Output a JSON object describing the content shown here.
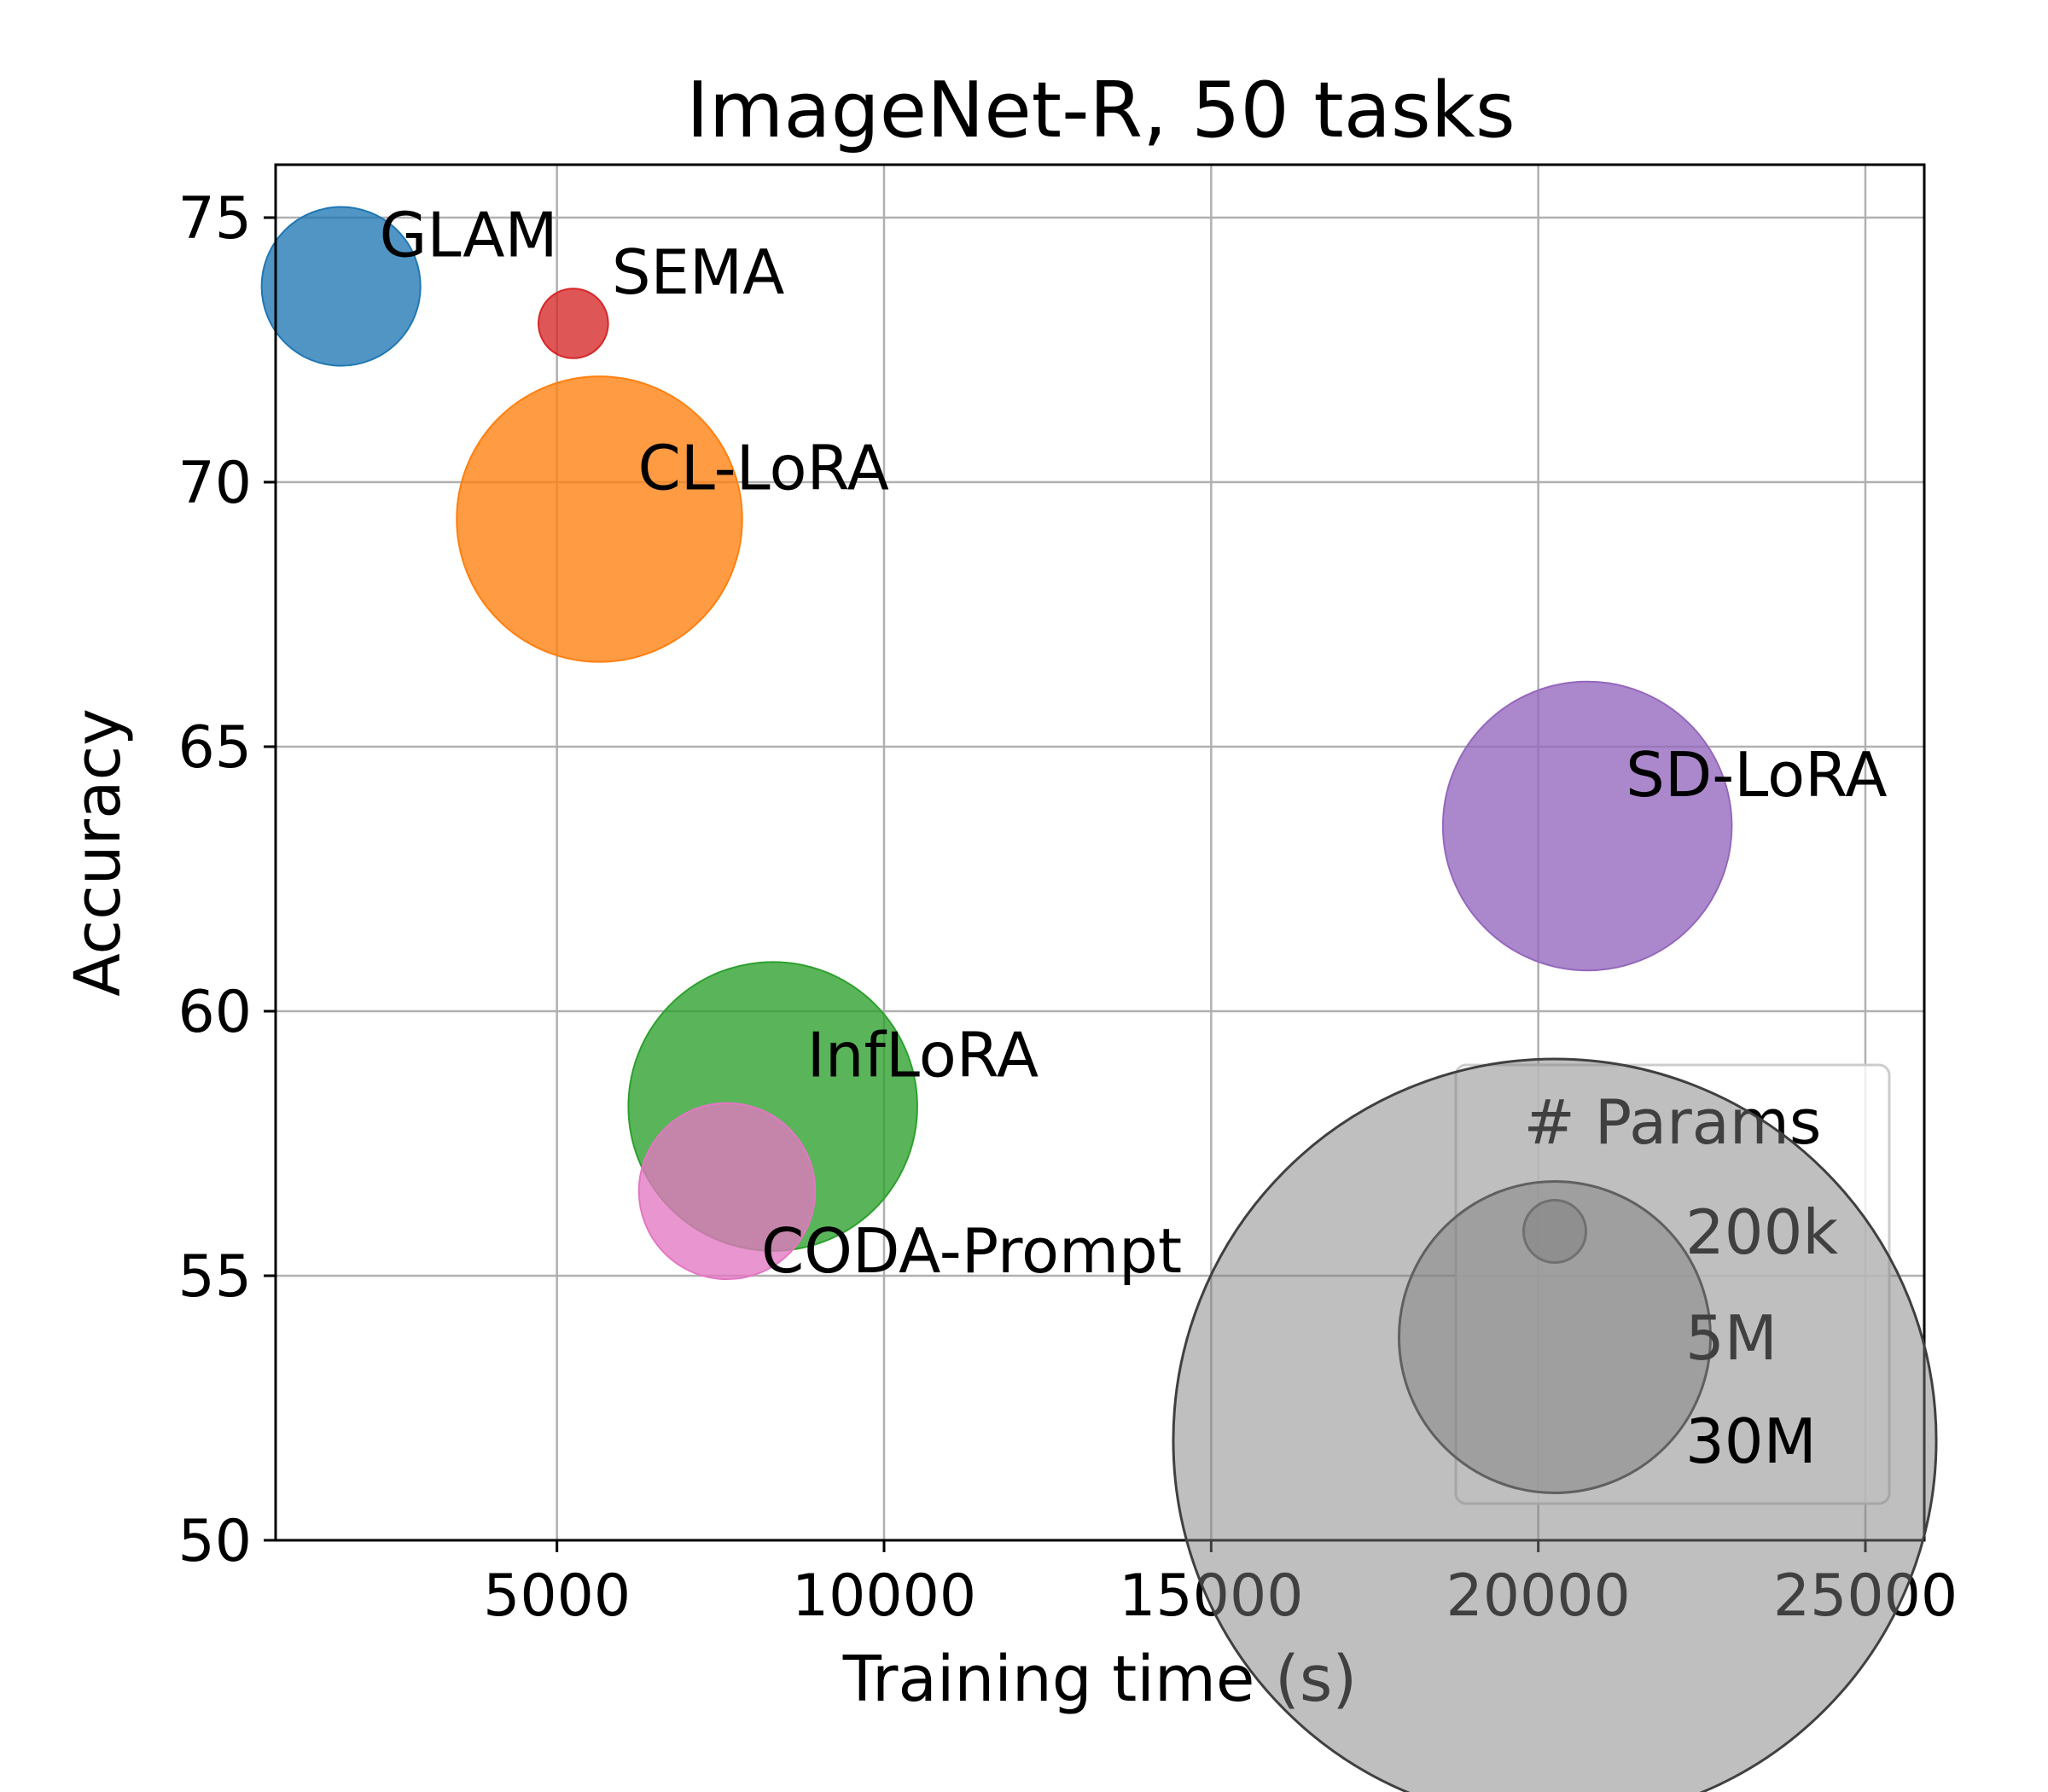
{
  "chart_data": {
    "type": "scatter",
    "title": "ImageNet-R, 50 tasks",
    "xlabel": "Training time (s)",
    "ylabel": "Accuracy",
    "xlim": [
      700,
      25900
    ],
    "ylim": [
      50,
      76
    ],
    "xticks": [
      5000,
      10000,
      15000,
      20000,
      25000
    ],
    "yticks": [
      50,
      55,
      60,
      65,
      70,
      75
    ],
    "grid": true,
    "series": [
      {
        "name": "GLAM",
        "x": 1700,
        "y": 73.7,
        "params_label": "",
        "color": "#1f77b4"
      },
      {
        "name": "SEMA",
        "x": 5250,
        "y": 73.0,
        "params_label": "",
        "color": "#d62728"
      },
      {
        "name": "CL-LoRA",
        "x": 5650,
        "y": 69.3,
        "params_label": "",
        "color": "#ff7f0e"
      },
      {
        "name": "SD-LoRA",
        "x": 20750,
        "y": 63.5,
        "params_label": "",
        "color": "#9467bd"
      },
      {
        "name": "InfLoRA",
        "x": 8300,
        "y": 58.2,
        "params_label": "",
        "color": "#2ca02c"
      },
      {
        "name": "CODA-Prompt",
        "x": 7600,
        "y": 56.6,
        "params_label": "",
        "color": "#e377c2"
      }
    ],
    "point_params_m": [
      1.3,
      0.25,
      4.2,
      4.3,
      4.3,
      1.6
    ],
    "legend": {
      "title": "# Params",
      "position": "lower-right",
      "entries": [
        {
          "label": "200k",
          "params_m": 0.2
        },
        {
          "label": "5M",
          "params_m": 5
        },
        {
          "label": "30M",
          "params_m": 30
        }
      ]
    }
  }
}
